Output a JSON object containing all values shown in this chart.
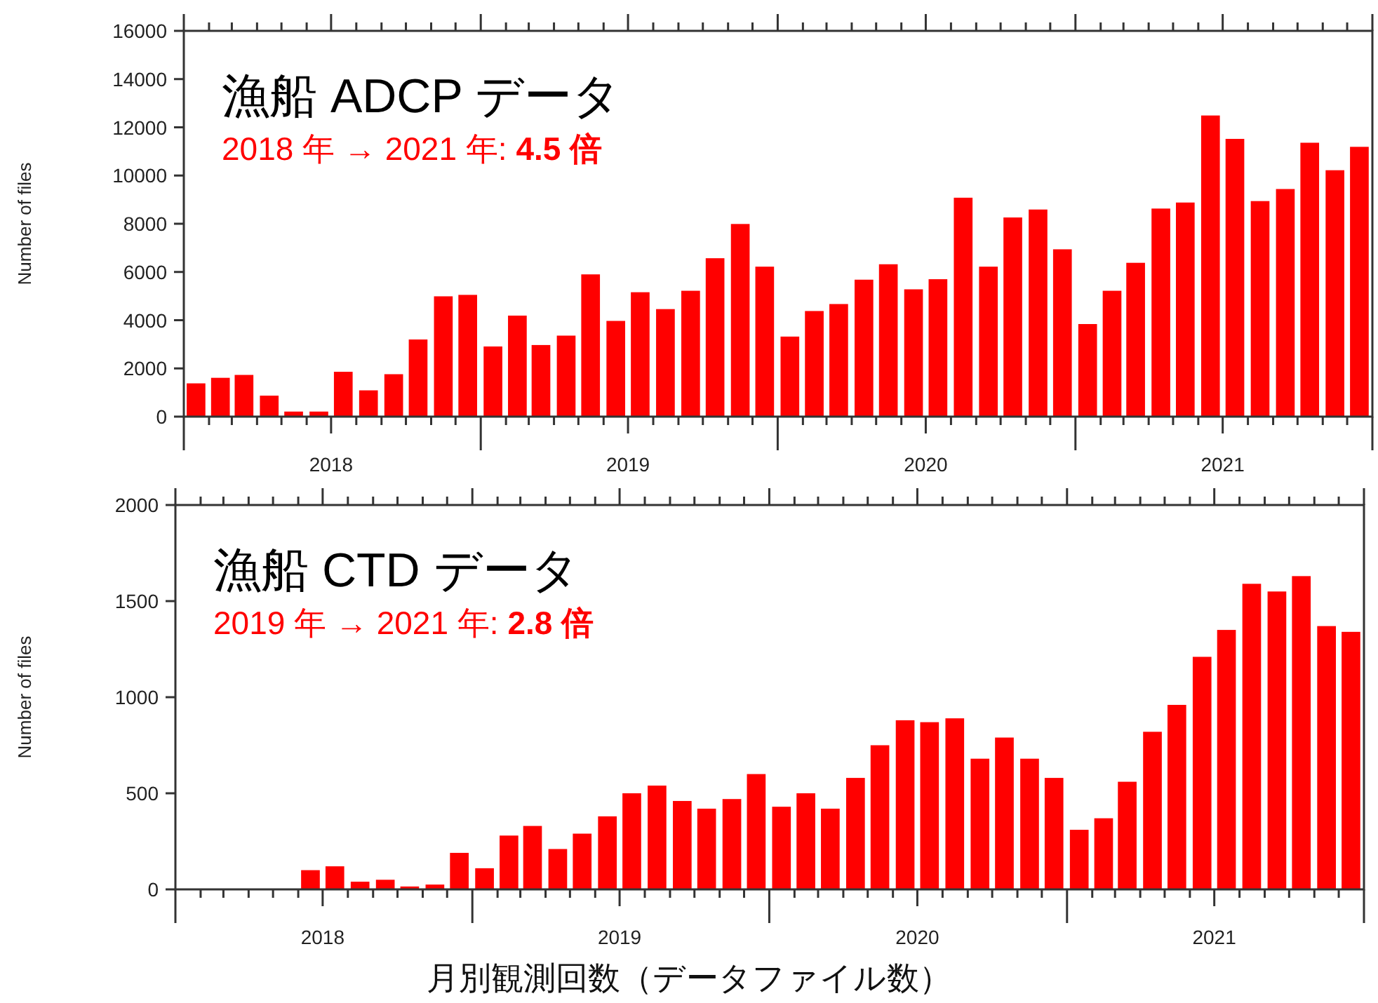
{
  "chart_data": [
    {
      "type": "bar",
      "title": "漁船 ADCP データ",
      "subtitle": "2018 年 → 2021 年: **4.5 倍**",
      "ylabel": "Number of files",
      "color": "#ff0000",
      "grid": false,
      "x": [
        "2018-01-16",
        "2018-02-15",
        "2018-03-16",
        "2018-04-16",
        "2018-05-16",
        "2018-06-16",
        "2018-07-16",
        "2018-08-16",
        "2018-09-16",
        "2018-10-16",
        "2018-11-16",
        "2018-12-16",
        "2019-01-16",
        "2019-02-15",
        "2019-03-16",
        "2019-04-16",
        "2019-05-16",
        "2019-06-16",
        "2019-07-16",
        "2019-08-16",
        "2019-09-16",
        "2019-10-16",
        "2019-11-16",
        "2019-12-16",
        "2020-01-16",
        "2020-02-15",
        "2020-03-16",
        "2020-04-16",
        "2020-05-16",
        "2020-06-16",
        "2020-07-16",
        "2020-08-16",
        "2020-09-16",
        "2020-10-16",
        "2020-11-16",
        "2020-12-16",
        "2021-01-16",
        "2021-02-15",
        "2021-03-16",
        "2021-04-16",
        "2021-05-16",
        "2021-06-16",
        "2021-07-16",
        "2021-08-16",
        "2021-09-16",
        "2021-10-16",
        "2021-11-16",
        "2021-12-16"
      ],
      "values": [
        1380,
        1610,
        1730,
        870,
        210,
        210,
        1860,
        1090,
        1760,
        3200,
        4990,
        5050,
        2910,
        4190,
        2970,
        3360,
        5900,
        3970,
        5160,
        4460,
        5220,
        6570,
        7990,
        6220,
        3320,
        4380,
        4670,
        5680,
        6320,
        5280,
        5700,
        9080,
        6220,
        8260,
        8590,
        6940,
        3840,
        5220,
        6380,
        8630,
        8880,
        12490,
        11520,
        8940,
        9440,
        11360,
        10220,
        11190
      ],
      "xlim": [
        "2018-01-01",
        "2022-01-01"
      ],
      "xticks": [
        {
          "value": "2018-01-01",
          "label": null
        },
        {
          "value": "2018-02-01",
          "label": null
        },
        {
          "value": "2018-03-01",
          "label": null
        },
        {
          "value": "2018-04-01",
          "label": null
        },
        {
          "value": "2018-05-01",
          "label": null
        },
        {
          "value": "2018-06-01",
          "label": null
        },
        {
          "value": "2018-07-01",
          "label": "2018"
        },
        {
          "value": "2018-08-01",
          "label": null
        },
        {
          "value": "2018-09-01",
          "label": null
        },
        {
          "value": "2018-10-01",
          "label": null
        },
        {
          "value": "2018-11-01",
          "label": null
        },
        {
          "value": "2018-12-01",
          "label": null
        },
        {
          "value": "2019-01-01",
          "label": null
        },
        {
          "value": "2019-02-01",
          "label": null
        },
        {
          "value": "2019-03-01",
          "label": null
        },
        {
          "value": "2019-04-01",
          "label": null
        },
        {
          "value": "2019-05-01",
          "label": null
        },
        {
          "value": "2019-06-01",
          "label": null
        },
        {
          "value": "2019-07-01",
          "label": "2019"
        },
        {
          "value": "2019-08-01",
          "label": null
        },
        {
          "value": "2019-09-01",
          "label": null
        },
        {
          "value": "2019-10-01",
          "label": null
        },
        {
          "value": "2019-11-01",
          "label": null
        },
        {
          "value": "2019-12-01",
          "label": null
        },
        {
          "value": "2020-01-01",
          "label": null
        },
        {
          "value": "2020-02-01",
          "label": null
        },
        {
          "value": "2020-03-01",
          "label": null
        },
        {
          "value": "2020-04-01",
          "label": null
        },
        {
          "value": "2020-05-01",
          "label": null
        },
        {
          "value": "2020-06-01",
          "label": null
        },
        {
          "value": "2020-07-01",
          "label": "2020"
        },
        {
          "value": "2020-08-01",
          "label": null
        },
        {
          "value": "2020-09-01",
          "label": null
        },
        {
          "value": "2020-10-01",
          "label": null
        },
        {
          "value": "2020-11-01",
          "label": null
        },
        {
          "value": "2020-12-01",
          "label": null
        },
        {
          "value": "2021-01-01",
          "label": null
        },
        {
          "value": "2021-02-01",
          "label": null
        },
        {
          "value": "2021-03-01",
          "label": null
        },
        {
          "value": "2021-04-01",
          "label": null
        },
        {
          "value": "2021-05-01",
          "label": null
        },
        {
          "value": "2021-06-01",
          "label": null
        },
        {
          "value": "2021-07-01",
          "label": "2021"
        },
        {
          "value": "2021-08-01",
          "label": null
        },
        {
          "value": "2021-09-01",
          "label": null
        },
        {
          "value": "2021-10-01",
          "label": null
        },
        {
          "value": "2021-11-01",
          "label": null
        },
        {
          "value": "2021-12-01",
          "label": null
        },
        {
          "value": "2022-01-01",
          "label": null
        }
      ],
      "ylim": [
        0,
        16000
      ],
      "yticks": [
        0,
        2000,
        4000,
        6000,
        8000,
        10000,
        12000,
        14000,
        16000
      ]
    },
    {
      "type": "bar",
      "title": "漁船 CTD データ",
      "subtitle": "2019 年 → 2021 年: **2.8 倍**",
      "ylabel": "Number of files",
      "color": "#ff0000",
      "grid": false,
      "annotations": [
        "月別観測回数（データファイル数）"
      ],
      "x": [
        "2018-01-16",
        "2018-02-15",
        "2018-03-16",
        "2018-04-16",
        "2018-05-16",
        "2018-06-16",
        "2018-07-16",
        "2018-08-16",
        "2018-09-16",
        "2018-10-16",
        "2018-11-16",
        "2018-12-16",
        "2019-01-16",
        "2019-02-15",
        "2019-03-16",
        "2019-04-16",
        "2019-05-16",
        "2019-06-16",
        "2019-07-16",
        "2019-08-16",
        "2019-09-16",
        "2019-10-16",
        "2019-11-16",
        "2019-12-16",
        "2020-01-16",
        "2020-02-15",
        "2020-03-16",
        "2020-04-16",
        "2020-05-16",
        "2020-06-16",
        "2020-07-16",
        "2020-08-16",
        "2020-09-16",
        "2020-10-16",
        "2020-11-16",
        "2020-12-16",
        "2021-01-16",
        "2021-02-15",
        "2021-03-16",
        "2021-04-16",
        "2021-05-16",
        "2021-06-16",
        "2021-07-16",
        "2021-08-16",
        "2021-09-16",
        "2021-10-16",
        "2021-11-16",
        "2021-12-16"
      ],
      "values": [
        0,
        0,
        0,
        0,
        0,
        100,
        120,
        40,
        50,
        15,
        25,
        190,
        110,
        280,
        330,
        210,
        290,
        380,
        500,
        540,
        460,
        420,
        470,
        600,
        430,
        500,
        420,
        580,
        750,
        880,
        870,
        890,
        680,
        790,
        680,
        580,
        310,
        370,
        560,
        820,
        960,
        1210,
        1350,
        1590,
        1550,
        1630,
        1370,
        1340
      ],
      "xlim": [
        "2018-01-01",
        "2022-01-01"
      ],
      "xticks": [
        {
          "value": "2018-01-01",
          "label": null
        },
        {
          "value": "2018-02-01",
          "label": null
        },
        {
          "value": "2018-03-01",
          "label": null
        },
        {
          "value": "2018-04-01",
          "label": null
        },
        {
          "value": "2018-05-01",
          "label": null
        },
        {
          "value": "2018-06-01",
          "label": null
        },
        {
          "value": "2018-07-01",
          "label": "2018"
        },
        {
          "value": "2018-08-01",
          "label": null
        },
        {
          "value": "2018-09-01",
          "label": null
        },
        {
          "value": "2018-10-01",
          "label": null
        },
        {
          "value": "2018-11-01",
          "label": null
        },
        {
          "value": "2018-12-01",
          "label": null
        },
        {
          "value": "2019-01-01",
          "label": null
        },
        {
          "value": "2019-02-01",
          "label": null
        },
        {
          "value": "2019-03-01",
          "label": null
        },
        {
          "value": "2019-04-01",
          "label": null
        },
        {
          "value": "2019-05-01",
          "label": null
        },
        {
          "value": "2019-06-01",
          "label": null
        },
        {
          "value": "2019-07-01",
          "label": "2019"
        },
        {
          "value": "2019-08-01",
          "label": null
        },
        {
          "value": "2019-09-01",
          "label": null
        },
        {
          "value": "2019-10-01",
          "label": null
        },
        {
          "value": "2019-11-01",
          "label": null
        },
        {
          "value": "2019-12-01",
          "label": null
        },
        {
          "value": "2020-01-01",
          "label": null
        },
        {
          "value": "2020-02-01",
          "label": null
        },
        {
          "value": "2020-03-01",
          "label": null
        },
        {
          "value": "2020-04-01",
          "label": null
        },
        {
          "value": "2020-05-01",
          "label": null
        },
        {
          "value": "2020-06-01",
          "label": null
        },
        {
          "value": "2020-07-01",
          "label": "2020"
        },
        {
          "value": "2020-08-01",
          "label": null
        },
        {
          "value": "2020-09-01",
          "label": null
        },
        {
          "value": "2020-10-01",
          "label": null
        },
        {
          "value": "2020-11-01",
          "label": null
        },
        {
          "value": "2020-12-01",
          "label": null
        },
        {
          "value": "2021-01-01",
          "label": null
        },
        {
          "value": "2021-02-01",
          "label": null
        },
        {
          "value": "2021-03-01",
          "label": null
        },
        {
          "value": "2021-04-01",
          "label": null
        },
        {
          "value": "2021-05-01",
          "label": null
        },
        {
          "value": "2021-06-01",
          "label": null
        },
        {
          "value": "2021-07-01",
          "label": "2021"
        },
        {
          "value": "2021-08-01",
          "label": null
        },
        {
          "value": "2021-09-01",
          "label": null
        },
        {
          "value": "2021-10-01",
          "label": null
        },
        {
          "value": "2021-11-01",
          "label": null
        },
        {
          "value": "2021-12-01",
          "label": null
        },
        {
          "value": "2022-01-01",
          "label": null
        }
      ],
      "ylim": [
        0,
        2000
      ],
      "yticks": [
        0,
        500,
        1000,
        1500,
        2000
      ]
    }
  ]
}
